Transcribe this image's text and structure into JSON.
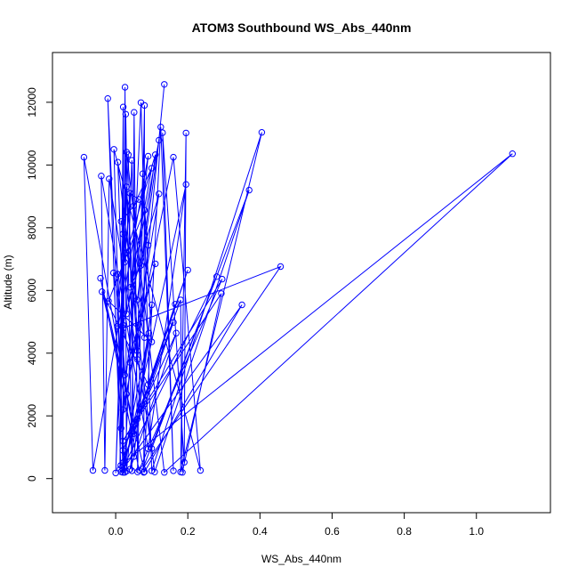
{
  "chart_data": {
    "type": "line",
    "title": "ATOM3 Southbound WS_Abs_440nm",
    "xlabel": "WS_Abs_440nm",
    "ylabel": "Altitude (m)",
    "xlim": [
      -0.12,
      1.15
    ],
    "ylim": [
      -500,
      13000
    ],
    "x_ticks": [
      0.0,
      0.2,
      0.4,
      0.6,
      0.8,
      1.0
    ],
    "x_tick_labels": [
      "0.0",
      "0.2",
      "0.4",
      "0.6",
      "0.8",
      "1.0"
    ],
    "y_ticks": [
      0,
      2000,
      4000,
      6000,
      8000,
      10000,
      12000
    ],
    "y_tick_labels": [
      "0",
      "2000",
      "4000",
      "6000",
      "8000",
      "10000",
      "12000"
    ],
    "grid": false,
    "series": [
      {
        "color": "#0000FF",
        "marker": "open-circle",
        "points": [
          [
            0.135,
            12570
          ],
          [
            0.03,
            240
          ],
          [
            0.026,
            12480
          ],
          [
            0.02,
            280
          ],
          [
            0.021,
            11850
          ],
          [
            0.012,
            300
          ],
          [
            0.028,
            11620
          ],
          [
            0.045,
            250
          ],
          [
            0.051,
            11680
          ],
          [
            0.061,
            210
          ],
          [
            0.08,
            11900
          ],
          [
            0.078,
            200
          ],
          [
            0.125,
            11210
          ],
          [
            0.16,
            250
          ],
          [
            0.13,
            11030
          ],
          [
            0.19,
            520
          ],
          [
            0.195,
            11020
          ],
          [
            0.18,
            210
          ],
          [
            0.405,
            11040
          ],
          [
            0.1,
            250
          ],
          [
            0.07,
            11990
          ],
          [
            0.025,
            200
          ],
          [
            -0.022,
            12120
          ],
          [
            0.014,
            420
          ],
          [
            1.1,
            10360
          ],
          [
            0.135,
            200
          ],
          [
            0.03,
            10410
          ],
          [
            0.0,
            180
          ],
          [
            0.035,
            10330
          ],
          [
            0.05,
            1430
          ],
          [
            -0.088,
            10250
          ],
          [
            -0.063,
            260
          ],
          [
            0.09,
            10280
          ],
          [
            0.02,
            2200
          ],
          [
            0.16,
            10250
          ],
          [
            0.235,
            260
          ],
          [
            -0.005,
            10500
          ],
          [
            0.02,
            200
          ],
          [
            0.195,
            9380
          ],
          [
            0.09,
            950
          ],
          [
            -0.04,
            9650
          ],
          [
            -0.03,
            260
          ],
          [
            -0.018,
            9560
          ],
          [
            0.1,
            960
          ],
          [
            0.37,
            9200
          ],
          [
            0.108,
            210
          ],
          [
            0.006,
            10090
          ],
          [
            0.021,
            4800
          ],
          [
            0.457,
            6760
          ],
          [
            0.075,
            310
          ],
          [
            0.28,
            6440
          ],
          [
            0.015,
            220
          ],
          [
            0.35,
            5540
          ],
          [
            0.08,
            220
          ],
          [
            -0.042,
            6390
          ],
          [
            0.065,
            270
          ],
          [
            0.295,
            6360
          ],
          [
            0.02,
            1200
          ],
          [
            0.293,
            5900
          ],
          [
            0.185,
            200
          ],
          [
            0.18,
            5700
          ],
          [
            0.06,
            1900
          ],
          [
            0.165,
            5560
          ],
          [
            0.022,
            520
          ],
          [
            0.16,
            4980
          ],
          [
            0.02,
            900
          ],
          [
            0.168,
            4640
          ],
          [
            0.04,
            300
          ],
          [
            0.1,
            5540
          ],
          [
            0.05,
            700
          ],
          [
            0.092,
            4640
          ],
          [
            0.02,
            500
          ],
          [
            0.2,
            6650
          ],
          [
            0.09,
            3000
          ],
          [
            -0.038,
            5960
          ],
          [
            0.03,
            2700
          ],
          [
            0.005,
            6520
          ],
          [
            0.025,
            3300
          ],
          [
            0.11,
            6850
          ],
          [
            0.04,
            3700
          ],
          [
            -0.006,
            6560
          ],
          [
            0.015,
            1600
          ],
          [
            0.12,
            9080
          ],
          [
            0.02,
            4900
          ],
          [
            0.005,
            4860
          ],
          [
            0.03,
            9300
          ],
          [
            0.06,
            4080
          ],
          [
            0.075,
            9720
          ],
          [
            0.1,
            4360
          ],
          [
            -0.02,
            5660
          ],
          [
            0.08,
            8560
          ],
          [
            0.09,
            7440
          ],
          [
            0.06,
            3800
          ],
          [
            0.045,
            10150
          ],
          [
            0.03,
            5250
          ],
          [
            0.12,
            10790
          ],
          [
            0.06,
            5700
          ],
          [
            0.02,
            7800
          ],
          [
            0.08,
            4500
          ],
          [
            0.05,
            8700
          ],
          [
            0.1,
            9900
          ],
          [
            0.04,
            6100
          ],
          [
            0.07,
            6800
          ],
          [
            0.11,
            10330
          ],
          [
            0.03,
            7200
          ],
          [
            0.015,
            8200
          ],
          [
            0.065,
            8900
          ],
          [
            0.04,
            9100
          ],
          [
            0.025,
            6900
          ]
        ]
      }
    ]
  }
}
